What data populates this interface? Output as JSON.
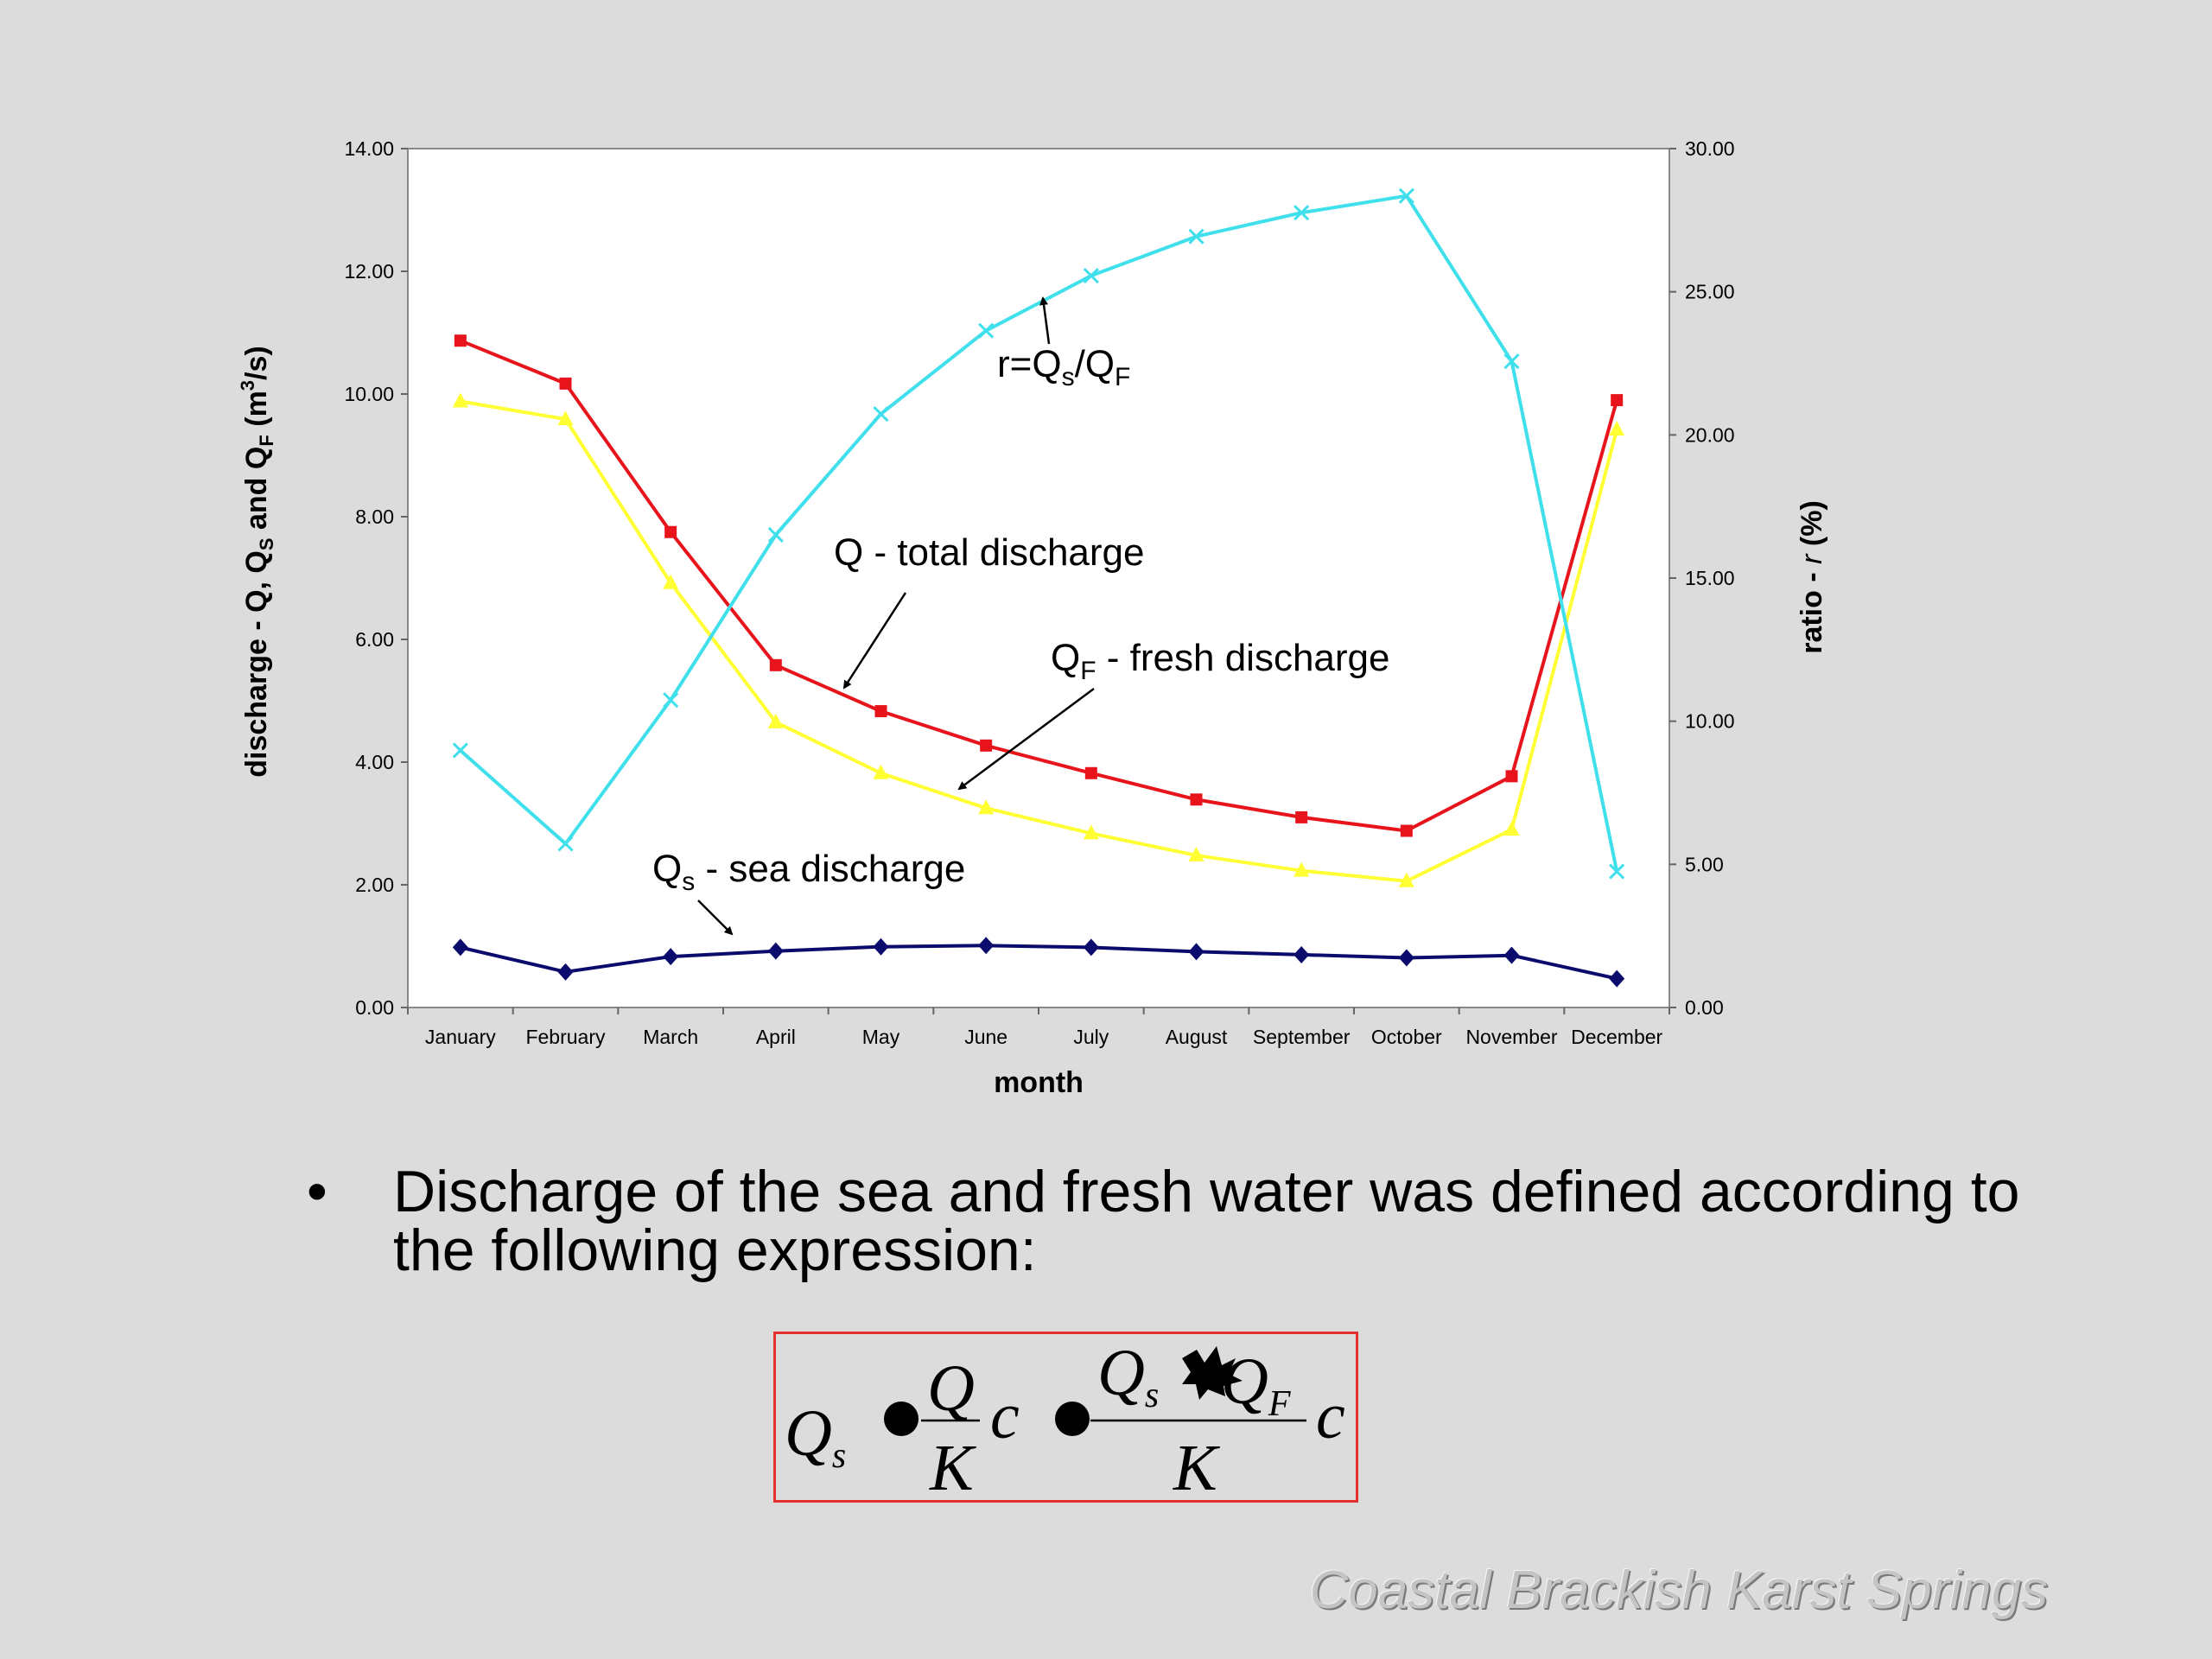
{
  "chart_data": {
    "type": "line",
    "categories": [
      "January",
      "February",
      "March",
      "April",
      "May",
      "June",
      "July",
      "August",
      "September",
      "October",
      "November",
      "December"
    ],
    "xlabel": "month",
    "ylabel_left": {
      "prefix": "discharge - Q, Q",
      "s1": "S",
      "mid": " and Q",
      "s2": "F",
      "unit_pre": " (m",
      "sup": "3",
      "unit_post": "/s)"
    },
    "ylabel_right": {
      "text": "ratio - ",
      "var": "r",
      "unit": " (%)"
    },
    "ylim_left": [
      0,
      14
    ],
    "ylim_right": [
      0,
      30
    ],
    "y_ticks_left": [
      "0.00",
      "2.00",
      "4.00",
      "6.00",
      "8.00",
      "10.00",
      "12.00",
      "14.00"
    ],
    "y_ticks_right": [
      "0.00",
      "5.00",
      "10.00",
      "15.00",
      "20.00",
      "25.00",
      "30.00"
    ],
    "grid": false,
    "series": [
      {
        "name": "Q - total discharge",
        "axis": "left",
        "color": "#e8141c",
        "marker": "square",
        "values": [
          10.87,
          10.17,
          7.75,
          5.58,
          4.83,
          4.27,
          3.82,
          3.39,
          3.1,
          2.88,
          3.77,
          9.9
        ]
      },
      {
        "name": "QF - fresh discharge",
        "axis": "left",
        "color": "#ffff33",
        "marker": "triangle",
        "values": [
          9.88,
          9.59,
          6.92,
          4.65,
          3.82,
          3.25,
          2.84,
          2.48,
          2.23,
          2.06,
          2.9,
          9.42
        ]
      },
      {
        "name": "Qs - sea discharge",
        "axis": "left",
        "color": "#0b0b6e",
        "marker": "diamond",
        "values": [
          0.98,
          0.58,
          0.83,
          0.92,
          0.99,
          1.01,
          0.98,
          0.91,
          0.86,
          0.81,
          0.85,
          0.47
        ]
      },
      {
        "name": "r=Qs/QF",
        "axis": "right",
        "color": "#3fe0ec",
        "marker": "x",
        "values": [
          8.98,
          5.72,
          10.74,
          16.51,
          20.73,
          23.64,
          25.56,
          26.93,
          27.76,
          28.35,
          22.57,
          4.75
        ]
      }
    ],
    "annotations": {
      "ratio": {
        "a": "r=Q",
        "s1": "s",
        "b": "/Q",
        "s2": "F"
      },
      "total": {
        "text": "Q - total discharge"
      },
      "fresh": {
        "a": "Q",
        "s1": "F",
        "b": " - fresh discharge"
      },
      "sea": {
        "a": "Q",
        "s1": "s",
        "b": " - sea discharge"
      }
    }
  },
  "bullet": {
    "symbol": "•",
    "text": "Discharge of the sea and fresh water was defined according to the following expression:"
  },
  "formula": {
    "lhs_var": "Q",
    "lhs_sub": "s",
    "n1": "Q",
    "d1": "K",
    "c1": "c",
    "n2a": "Q",
    "n2a_sub": "s",
    "n2b": "Q",
    "n2b_sub": "F",
    "d2": "K",
    "c2": "c"
  },
  "footer": {
    "text": "Coastal Brackish Karst Springs"
  }
}
